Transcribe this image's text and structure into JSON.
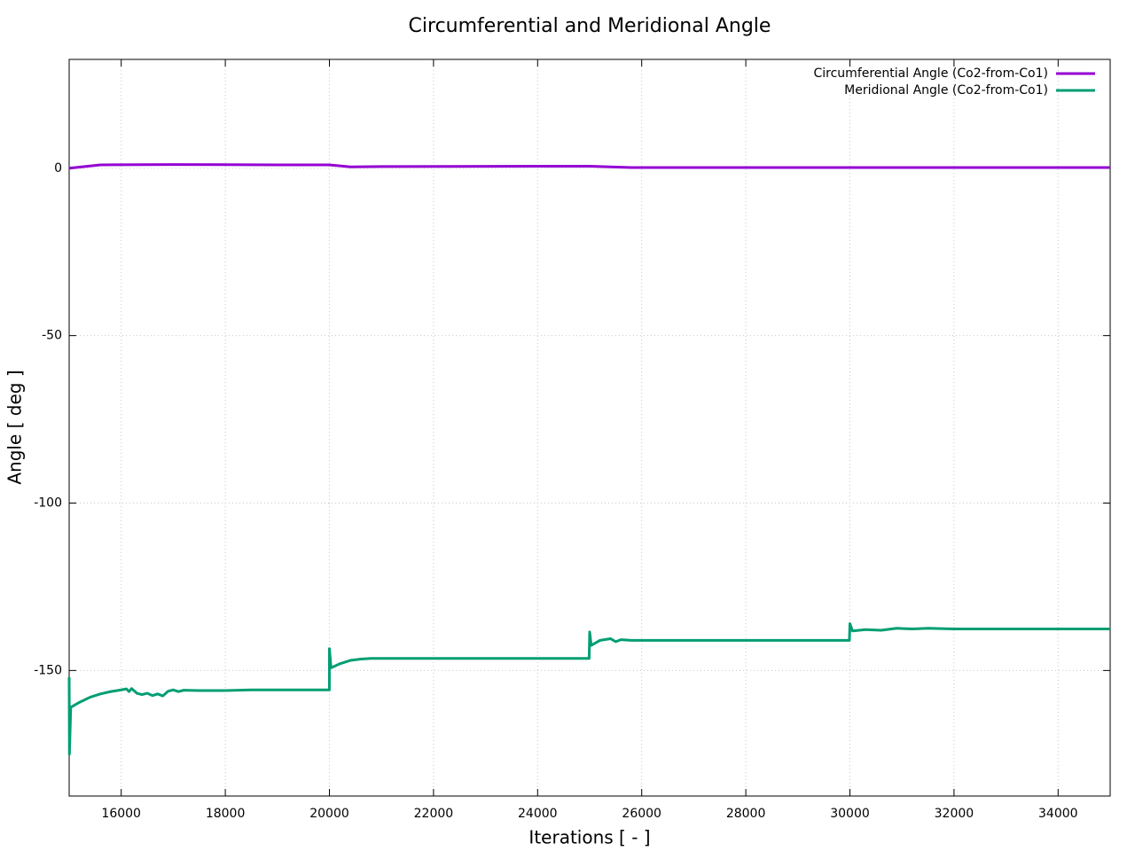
{
  "chart_data": {
    "type": "line",
    "title": "Circumferential and Meridional Angle",
    "x_label": "Iterations [ - ]",
    "y_label": "Angle [ deg ]",
    "xlim": [
      15000,
      35000
    ],
    "ylim": [
      -187.5,
      32.5
    ],
    "xticks": [
      16000,
      18000,
      20000,
      22000,
      24000,
      26000,
      28000,
      30000,
      32000,
      34000
    ],
    "yticks": [
      0,
      -50,
      -100,
      -150
    ],
    "grid": true,
    "legend": "top-right",
    "series": [
      {
        "name": "Circumferential Angle (Co2-from-Co1)",
        "color": "#9400d3",
        "x": [
          15000,
          15300,
          15600,
          17000,
          19000,
          20000,
          20400,
          21000,
          24000,
          25000,
          25800,
          35000
        ],
        "values": [
          0,
          0.5,
          1,
          1.1,
          1,
          1,
          0.4,
          0.5,
          0.6,
          0.6,
          0.2,
          0.2
        ]
      },
      {
        "name": "Meridional Angle (Co2-from-Co1)",
        "color": "#009e73",
        "x": [
          15000,
          15005,
          15030,
          15200,
          15400,
          15600,
          15800,
          16000,
          16100,
          16150,
          16200,
          16300,
          16400,
          16500,
          16600,
          16700,
          16800,
          16900,
          17000,
          17100,
          17200,
          17500,
          18000,
          18500,
          19999,
          20000,
          20030,
          20200,
          20400,
          20600,
          20800,
          24990,
          25000,
          25030,
          25200,
          25400,
          25500,
          25600,
          25800,
          29990,
          30000,
          30050,
          30300,
          30600,
          30900,
          31200,
          31500,
          32000,
          35000
        ],
        "values": [
          -152,
          -175,
          -161,
          -159.5,
          -158,
          -157,
          -156.3,
          -155.8,
          -155.5,
          -156.3,
          -155.4,
          -156.8,
          -157.2,
          -156.8,
          -157.5,
          -157,
          -157.6,
          -156.2,
          -155.8,
          -156.3,
          -155.9,
          -156,
          -156,
          -155.8,
          -155.8,
          -143.5,
          -149.2,
          -148,
          -147,
          -146.6,
          -146.4,
          -146.4,
          -138.5,
          -142.5,
          -141,
          -140.5,
          -141.4,
          -140.8,
          -141,
          -141,
          -136,
          -138.2,
          -137.8,
          -138,
          -137.4,
          -137.6,
          -137.4,
          -137.6,
          -137.6
        ]
      }
    ]
  }
}
